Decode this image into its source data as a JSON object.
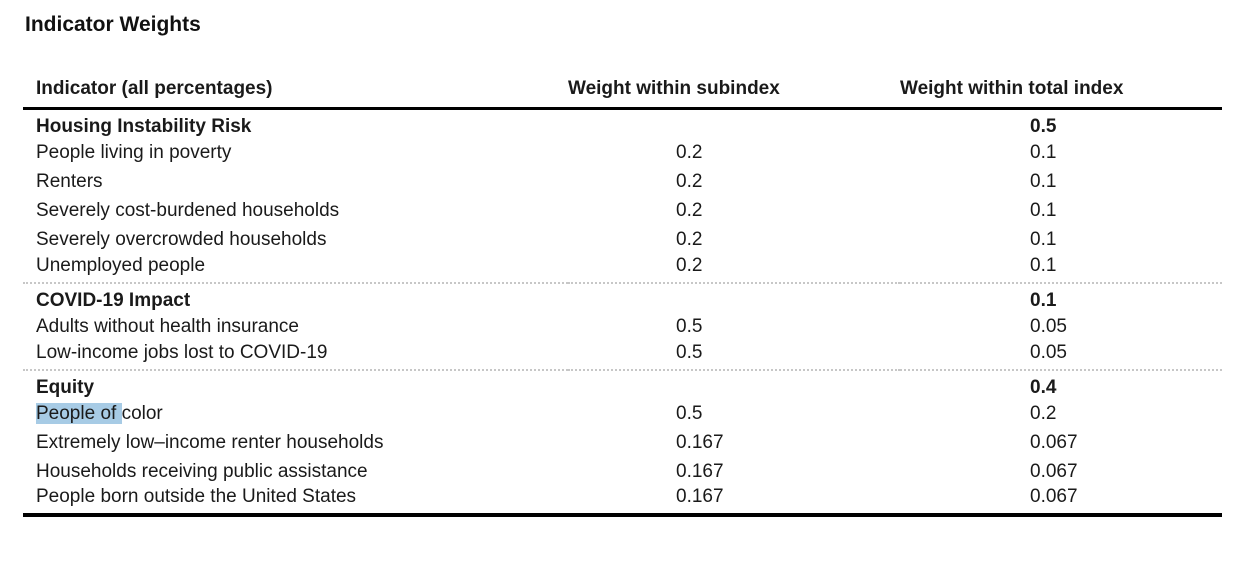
{
  "title": "Indicator Weights",
  "table": {
    "columns": [
      "Indicator (all percentages)",
      "Weight within subindex",
      "Weight within total index"
    ],
    "sections": [
      {
        "name": "Housing Instability Risk",
        "total_index_weight": "0.5",
        "rows": [
          {
            "name": "People living in poverty",
            "subindex": "0.2",
            "total": "0.1"
          },
          {
            "name": "Renters",
            "subindex": "0.2",
            "total": "0.1"
          },
          {
            "name": "Severely cost-burdened households",
            "subindex": "0.2",
            "total": "0.1"
          },
          {
            "name": "Severely overcrowded households",
            "subindex": "0.2",
            "total": "0.1"
          },
          {
            "name": "Unemployed people",
            "subindex": "0.2",
            "total": "0.1"
          }
        ]
      },
      {
        "name": "COVID-19 Impact",
        "total_index_weight": "0.1",
        "rows": [
          {
            "name": "Adults without health insurance",
            "subindex": "0.5",
            "total": "0.05"
          },
          {
            "name": "Low-income jobs lost to COVID-19",
            "subindex": "0.5",
            "total": "0.05"
          }
        ]
      },
      {
        "name": "Equity",
        "total_index_weight": "0.4",
        "rows": [
          {
            "name_highlighted": "People of ",
            "name_rest": "color",
            "subindex": "0.5",
            "total": "0.2"
          },
          {
            "name": "Extremely low–income renter households",
            "subindex": "0.167",
            "total": "0.067"
          },
          {
            "name": "Households receiving public assistance",
            "subindex": "0.167",
            "total": "0.067"
          },
          {
            "name": "People born outside the United States",
            "subindex": "0.167",
            "total": "0.067"
          }
        ]
      }
    ]
  },
  "colors": {
    "text": "#1a1a1a",
    "rule": "#000000",
    "dotted_separator": "#c7c7c7",
    "selection_highlight": "#a7cbe5"
  }
}
